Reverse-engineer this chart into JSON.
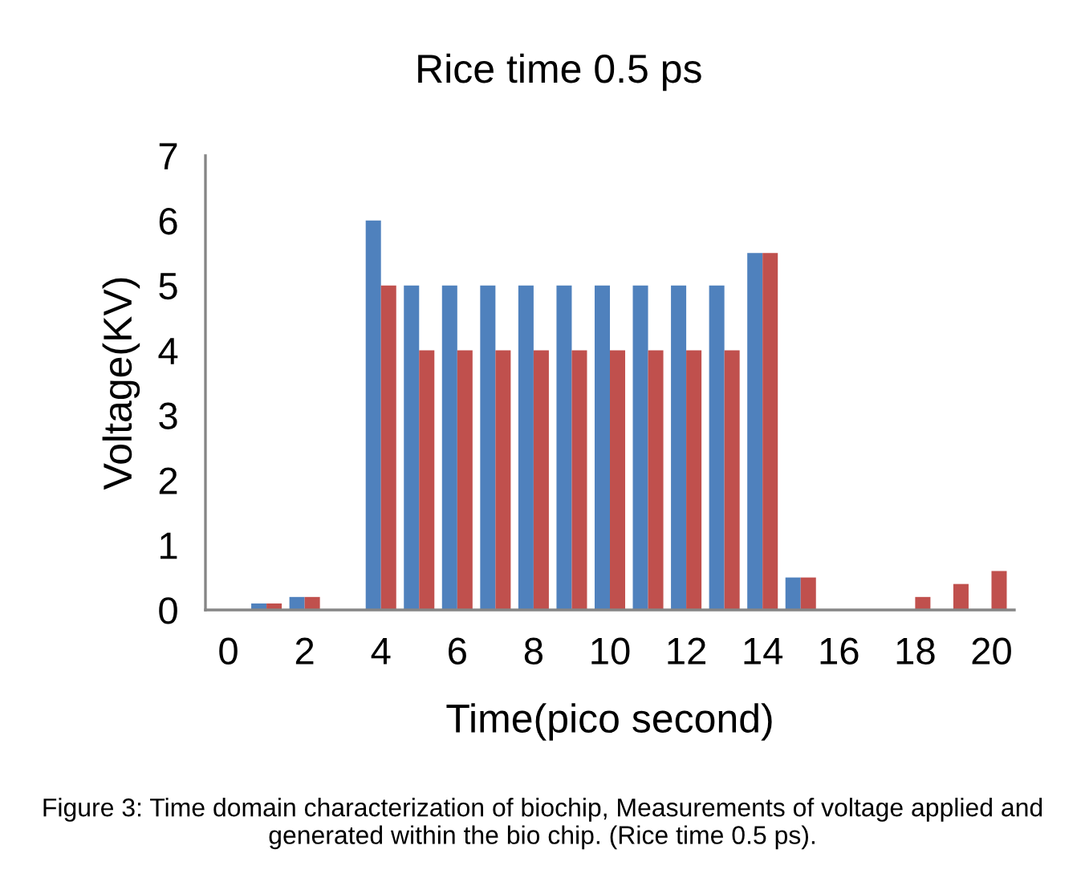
{
  "chart_data": {
    "type": "bar",
    "title": "Rice time 0.5 ps",
    "xlabel": "Time(pico second)",
    "ylabel": "Voltage(KV)",
    "categories": [
      "0",
      null,
      "2",
      null,
      "4",
      null,
      "6",
      null,
      "8",
      null,
      "10",
      null,
      "12",
      null,
      "14",
      null,
      "16",
      null,
      "18",
      null,
      "20"
    ],
    "series": [
      {
        "color": "#4f81bd",
        "values": [
          0,
          0.1,
          0.2,
          0,
          6,
          5,
          5,
          5,
          5,
          5,
          5,
          5,
          5,
          5,
          5.5,
          0.5,
          0,
          0,
          0,
          0,
          0
        ]
      },
      {
        "color": "#c0504d",
        "values": [
          0,
          0.1,
          0.2,
          0,
          5,
          4,
          4,
          4,
          4,
          4,
          4,
          4,
          4,
          4,
          5.5,
          0.5,
          0,
          0,
          0.2,
          0.4,
          0.6
        ]
      }
    ],
    "ylim": [
      0,
      7
    ],
    "yticks": [
      0,
      1,
      2,
      3,
      4,
      5,
      6,
      7
    ],
    "grid": false,
    "legend": false,
    "annotations": [
      "Figure 3: Time domain characterization of biochip, Measurements of voltage applied and generated within the bio chip. (Rice time 0.5 ps)."
    ]
  }
}
